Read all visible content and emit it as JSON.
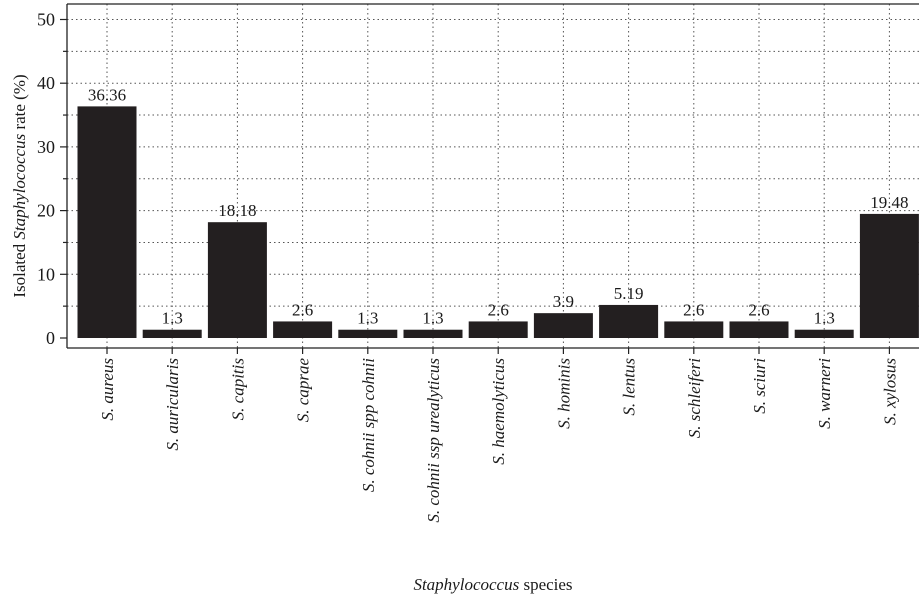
{
  "chart_data": {
    "type": "bar",
    "categories": [
      "S. aureus",
      "S. auricularis",
      "S. capitis",
      "S. caprae",
      "S. cohnii spp cohnii",
      "S. cohnii ssp urealyticus",
      "S. haemolyticus",
      "S. hominis",
      "S. lentus",
      "S. schleiferi",
      "S. sciuri",
      "S. warneri",
      "S. xylosus"
    ],
    "values": [
      36.36,
      1.3,
      18.18,
      2.6,
      1.3,
      1.3,
      2.6,
      3.9,
      5.19,
      2.6,
      2.6,
      1.3,
      19.48
    ],
    "value_labels": [
      "36.36",
      "1.3",
      "18.18",
      "2.6",
      "1.3",
      "1.3",
      "2.6",
      "3.9",
      "5.19",
      "2.6",
      "2.6",
      "1.3",
      "19.48"
    ],
    "ylim": [
      0,
      52
    ],
    "yticks": [
      0,
      10,
      20,
      30,
      40,
      50
    ],
    "ytick_labels": [
      "0",
      "10",
      "20",
      "30",
      "40",
      "50"
    ],
    "ylabel": {
      "prefix": "Isolated ",
      "italic": "Staphylococcus",
      "suffix": " rate (%)"
    },
    "xlabel": {
      "prefix": "",
      "italic": "Staphylococcus",
      "suffix": " species"
    },
    "grid": true,
    "colors": {
      "bar": "#231f20",
      "axis": "#222222"
    }
  }
}
